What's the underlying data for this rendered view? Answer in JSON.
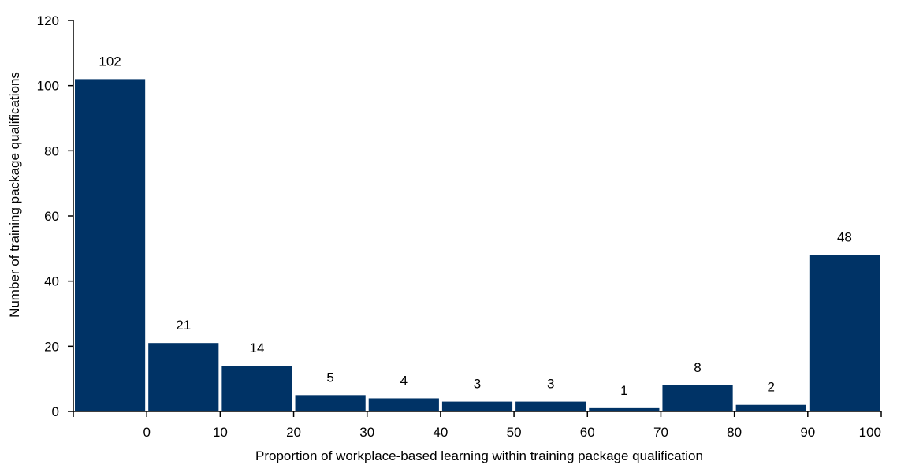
{
  "chart_data": {
    "type": "bar",
    "title": "",
    "xlabel": "Proportion of workplace-based learning within training package qualification",
    "ylabel": "Number of  training package qualifications",
    "ylim": [
      0,
      120
    ],
    "y_ticks": [
      "0",
      "20",
      "40",
      "60",
      "80",
      "100",
      "120"
    ],
    "x_ticks": [
      "0",
      "10",
      "20",
      "30",
      "40",
      "50",
      "60",
      "70",
      "80",
      "90",
      "100"
    ],
    "values": [
      102,
      21,
      14,
      5,
      4,
      3,
      3,
      1,
      8,
      2,
      48
    ],
    "data_labels": [
      "102",
      "21",
      "14",
      "5",
      "4",
      "3",
      "3",
      "1",
      "8",
      "2",
      "48"
    ],
    "bar_color": "#003366",
    "grid": false,
    "legend": "none"
  }
}
